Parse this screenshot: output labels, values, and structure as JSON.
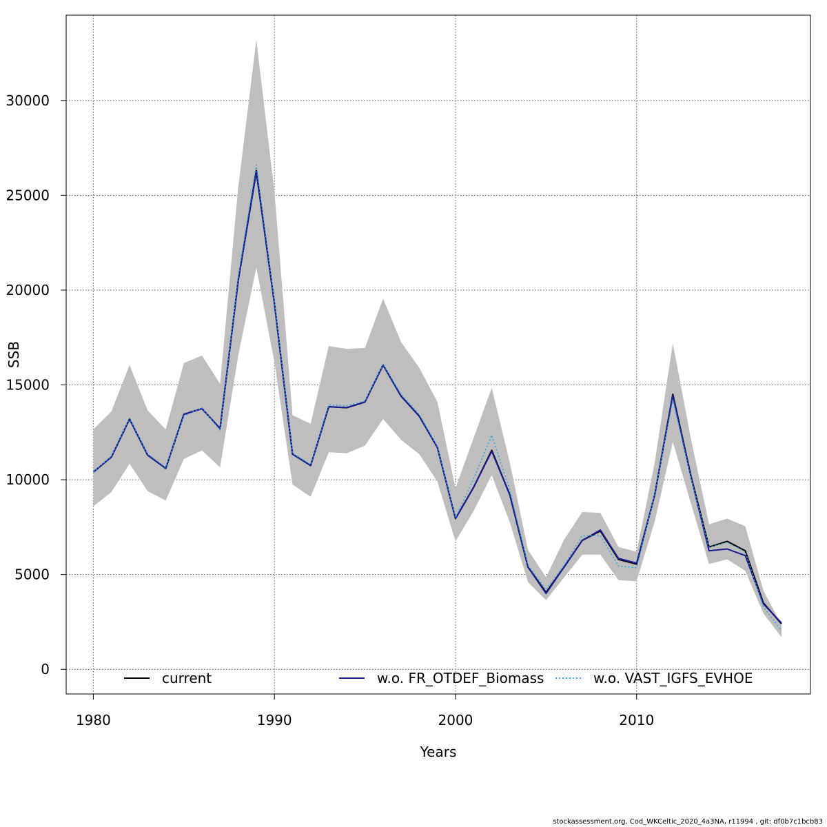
{
  "chart_data": {
    "type": "line",
    "title": "",
    "xlabel": "Years",
    "ylabel": "SSB",
    "xlim": [
      1978.5,
      2019.6
    ],
    "ylim": [
      -1300,
      34500
    ],
    "x_ticks": [
      "1980",
      "1990",
      "2000",
      "2010"
    ],
    "y_ticks": [
      "0",
      "5000",
      "10000",
      "15000",
      "20000",
      "25000",
      "30000"
    ],
    "grid": true,
    "legend_position": "bottom",
    "x": [
      1980,
      1981,
      1982,
      1983,
      1984,
      1985,
      1986,
      1987,
      1988,
      1989,
      1990,
      1991,
      1992,
      1993,
      1994,
      1995,
      1996,
      1997,
      1998,
      1999,
      2000,
      2001,
      2002,
      2003,
      2004,
      2005,
      2006,
      2007,
      2008,
      2009,
      2010,
      2011,
      2012,
      2013,
      2014,
      2015,
      2016,
      2017,
      2018
    ],
    "band": {
      "color": "#bebebe",
      "upper": [
        12650,
        13600,
        16050,
        13650,
        12650,
        16150,
        16550,
        15050,
        25400,
        33200,
        25200,
        13400,
        12950,
        17050,
        16900,
        16950,
        19550,
        17250,
        15900,
        14100,
        9550,
        12200,
        14850,
        10900,
        6300,
        4850,
        6850,
        8300,
        8250,
        6450,
        6200,
        10900,
        17200,
        12150,
        7650,
        7950,
        7550,
        4150,
        2350
      ],
      "lower": [
        8600,
        9350,
        10850,
        9400,
        8900,
        11100,
        11550,
        10650,
        16550,
        21200,
        16200,
        9750,
        9100,
        11450,
        11400,
        11800,
        13200,
        12100,
        11350,
        9900,
        6750,
        8350,
        10250,
        7750,
        4600,
        3650,
        4850,
        6050,
        6050,
        4700,
        4650,
        7800,
        12000,
        8750,
        5550,
        5800,
        5200,
        2950,
        1700
      ]
    },
    "series": [
      {
        "name": "current",
        "color": "#000000",
        "dash": "solid",
        "values": [
          10400,
          11200,
          13200,
          11300,
          10600,
          13450,
          13750,
          12700,
          20500,
          26300,
          19300,
          11350,
          10750,
          13850,
          13800,
          14100,
          16050,
          14400,
          13350,
          11700,
          7950,
          9600,
          11550,
          9200,
          5400,
          4050,
          5400,
          6800,
          7300,
          5800,
          5550,
          9200,
          14500,
          10200,
          6450,
          6750,
          6250,
          3500,
          2400
        ]
      },
      {
        "name": "w.o. FR_OTDEF_Biomass",
        "color": "#1c1c96",
        "dash": "solid",
        "values": [
          10400,
          11200,
          13200,
          11300,
          10600,
          13450,
          13750,
          12700,
          20500,
          26200,
          19300,
          11350,
          10750,
          13850,
          13800,
          14100,
          16050,
          14400,
          13350,
          11700,
          7950,
          9600,
          11500,
          9200,
          5400,
          4000,
          5400,
          6800,
          7350,
          5850,
          5600,
          9200,
          14450,
          10150,
          6250,
          6350,
          6000,
          3450,
          2450
        ]
      },
      {
        "name": "w.o. VAST_IGFS_EVHOE",
        "color": "#2aa8e0",
        "dash": "dotted",
        "values": [
          10400,
          11250,
          13250,
          11350,
          10650,
          13350,
          13800,
          12600,
          20700,
          26600,
          19400,
          11400,
          10800,
          13950,
          13900,
          14150,
          16100,
          14500,
          13450,
          11750,
          8000,
          10050,
          12350,
          9450,
          5500,
          4200,
          5500,
          7050,
          7050,
          5450,
          5350,
          9250,
          14200,
          10100,
          6450,
          6700,
          6200,
          3300,
          2050
        ]
      }
    ],
    "legend": [
      "current",
      "w.o. FR_OTDEF_Biomass",
      "w.o. VAST_IGFS_EVHOE"
    ]
  },
  "footer": {
    "text": "stockassessment.org, Cod_WKCeltic_2020_4a3NA, r11994 , git: df0b7c1bcb83"
  }
}
